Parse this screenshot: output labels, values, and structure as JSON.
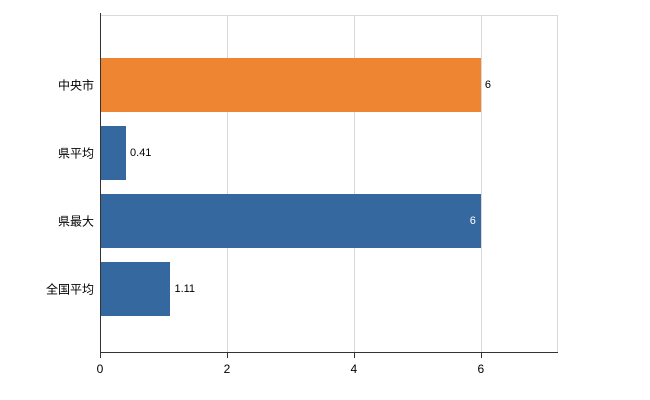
{
  "page": {
    "background": "#ffffff"
  },
  "chart_data": {
    "type": "bar",
    "orientation": "horizontal",
    "title": "",
    "xlabel": "",
    "ylabel": "",
    "categories": [
      "中央市",
      "県平均",
      "県最大",
      "全国平均"
    ],
    "values": [
      6,
      0.41,
      6,
      1.11
    ],
    "value_labels": [
      "6",
      "0.41",
      "6",
      "1.11"
    ],
    "bar_colors": [
      "#EE8532",
      "#35689E",
      "#35689E",
      "#35689E"
    ],
    "label_inside": [
      false,
      false,
      true,
      false
    ],
    "xlim": [
      0,
      7.2
    ],
    "xticks": [
      0,
      2,
      4,
      6
    ],
    "xtick_labels": [
      "0",
      "2",
      "4",
      "6"
    ],
    "grid": "vertical",
    "legend": "none",
    "colors": {
      "grid": "#d9d9d9",
      "axis": "#333333",
      "text": "#000000",
      "value_label_outside": "#000000",
      "value_label_inside": "#ffffff"
    }
  }
}
